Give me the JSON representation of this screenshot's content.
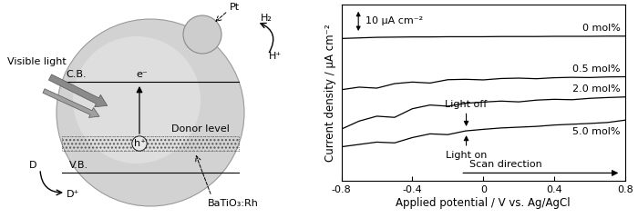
{
  "diagram": {
    "particle": {
      "label": "BaTiO₃:Rh"
    },
    "cocatalyst": {
      "label": "Pt"
    },
    "light": {
      "label": "Visible light"
    },
    "bands": {
      "conduction": "C.B.",
      "valence": "V.B.",
      "donor": "Donor level"
    },
    "carriers": {
      "electron": "e⁻",
      "hole": "h⁺"
    },
    "oxidation": {
      "reactant": "D",
      "product": "D⁺"
    },
    "reduction": {
      "reactant": "H⁺",
      "product": "H₂"
    }
  },
  "chart_data": {
    "type": "line",
    "xlabel": "Applied potential / V vs. Ag/AgCl",
    "ylabel": "Current density / μA cm⁻²",
    "xlim": [
      -0.8,
      0.8
    ],
    "xticks": [
      -0.8,
      -0.4,
      0,
      0.4,
      0.8
    ],
    "ylim": [
      -10,
      80
    ],
    "yticks": [],
    "tick_labels": "x",
    "x": [
      -0.8,
      -0.7,
      -0.6,
      -0.5,
      -0.4,
      -0.3,
      -0.2,
      -0.1,
      0,
      0.1,
      0.2,
      0.3,
      0.4,
      0.5,
      0.6,
      0.7,
      0.8
    ],
    "series": [
      {
        "name": "0 mol%",
        "color": "#000000",
        "values": [
          62.6,
          62.9,
          63.2,
          63.3,
          63.4,
          63.4,
          63.5,
          63.5,
          63.5,
          63.6,
          63.6,
          63.6,
          63.7,
          63.7,
          63.7,
          63.8,
          63.8
        ]
      },
      {
        "name": "0.5 mol%",
        "color": "#000000",
        "values": [
          36.5,
          37.8,
          37.3,
          39.6,
          40.4,
          39.9,
          41.6,
          41.8,
          41.5,
          42.2,
          42.4,
          42.1,
          42.6,
          42.8,
          42.7,
          43.0,
          43.1
        ]
      },
      {
        "name": "2.0 mol%",
        "color": "#000000",
        "values": [
          16.4,
          20.5,
          23.0,
          22.4,
          26.8,
          28.7,
          28.1,
          29.6,
          30.2,
          30.7,
          30.3,
          31.2,
          31.6,
          31.4,
          32.1,
          32.5,
          32.8
        ]
      },
      {
        "name": "5.0 mol%",
        "color": "#000000",
        "values": [
          7.4,
          8.6,
          9.8,
          9.4,
          12.1,
          14.0,
          13.6,
          15.5,
          16.3,
          17.0,
          17.4,
          17.8,
          18.5,
          18.9,
          19.3,
          19.8,
          21.0
        ]
      }
    ],
    "annotations": [
      "Light off",
      "Light on",
      "Scan direction"
    ],
    "scale_bar": {
      "label": "10 μA cm⁻²",
      "value": 10
    }
  }
}
